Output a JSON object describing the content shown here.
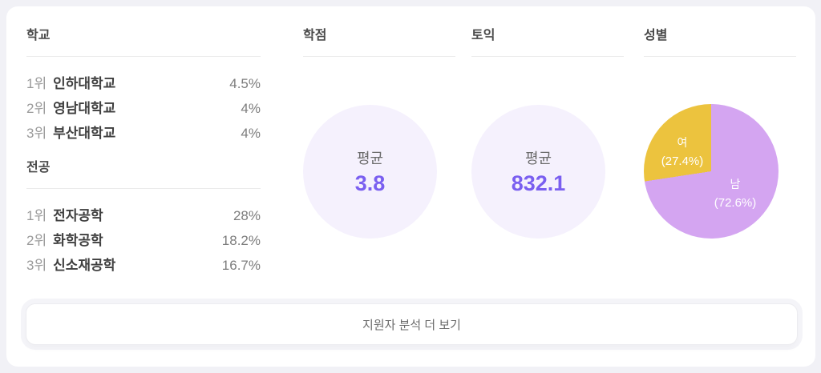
{
  "school": {
    "title": "학교",
    "rows": [
      {
        "rank": "1위",
        "name": "인하대학교",
        "value": "4.5%"
      },
      {
        "rank": "2위",
        "name": "영남대학교",
        "value": "4%"
      },
      {
        "rank": "3위",
        "name": "부산대학교",
        "value": "4%"
      }
    ]
  },
  "major": {
    "title": "전공",
    "rows": [
      {
        "rank": "1위",
        "name": "전자공학",
        "value": "28%"
      },
      {
        "rank": "2위",
        "name": "화학공학",
        "value": "18.2%"
      },
      {
        "rank": "3위",
        "name": "신소재공학",
        "value": "16.7%"
      }
    ]
  },
  "gpa": {
    "title": "학점",
    "label": "평균",
    "value": "3.8"
  },
  "toeic": {
    "title": "토익",
    "label": "평균",
    "value": "832.1"
  },
  "gender": {
    "title": "성별",
    "slices": [
      {
        "label": "남",
        "pct_text": "(72.6%)",
        "value": 72.6,
        "color": "#d4a5f1"
      },
      {
        "label": "여",
        "pct_text": "(27.4%)",
        "value": 27.4,
        "color": "#ecc33e"
      }
    ]
  },
  "button": {
    "label": "지원자 분석 더 보기"
  },
  "colors": {
    "page_bg": "#f1f1f6",
    "card_bg": "#ffffff",
    "accent_purple": "#7a5ff0",
    "kpi_circle_bg": "#f5f1fd",
    "pie_male": "#d4a5f1",
    "pie_female": "#ecc33e",
    "pie_label_text": "#ffffff"
  },
  "chart_data": [
    {
      "type": "table",
      "title": "학교",
      "columns": [
        "rank",
        "name",
        "share_pct"
      ],
      "rows": [
        [
          "1위",
          "인하대학교",
          4.5
        ],
        [
          "2위",
          "영남대학교",
          4
        ],
        [
          "3위",
          "부산대학교",
          4
        ]
      ]
    },
    {
      "type": "table",
      "title": "전공",
      "columns": [
        "rank",
        "name",
        "share_pct"
      ],
      "rows": [
        [
          "1위",
          "전자공학",
          28
        ],
        [
          "2위",
          "화학공학",
          18.2
        ],
        [
          "3위",
          "신소재공학",
          16.7
        ]
      ]
    },
    {
      "type": "table",
      "title": "학점",
      "columns": [
        "label",
        "value"
      ],
      "rows": [
        [
          "평균",
          3.8
        ]
      ]
    },
    {
      "type": "table",
      "title": "토익",
      "columns": [
        "label",
        "value"
      ],
      "rows": [
        [
          "평균",
          832.1
        ]
      ]
    },
    {
      "type": "pie",
      "title": "성별",
      "categories": [
        "남",
        "여"
      ],
      "values": [
        72.6,
        27.4
      ],
      "colors": [
        "#d4a5f1",
        "#ecc33e"
      ],
      "start_angle_deg": 0,
      "direction": "clockwise",
      "labels_on_slices": true,
      "legend_position": "none"
    }
  ]
}
